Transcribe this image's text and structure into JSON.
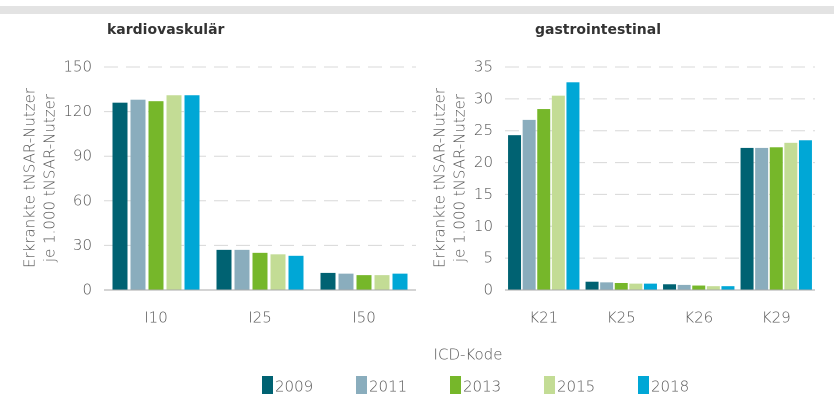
{
  "chart_data": [
    {
      "type": "bar",
      "title": "kardiovaskulär",
      "ylabel": [
        "Erkrankte tNSAR-Nutzer",
        "je 1.000 tNSAR-Nutzer"
      ],
      "xlabel": "ICD-Kode",
      "categories": [
        "I10",
        "I25",
        "I50"
      ],
      "series": [
        {
          "name": "2009",
          "color": "#006272",
          "values": [
            126,
            27,
            11.5
          ]
        },
        {
          "name": "2011",
          "color": "#8aadbd",
          "values": [
            128,
            27,
            11
          ]
        },
        {
          "name": "2013",
          "color": "#76b72a",
          "values": [
            127,
            25,
            10
          ]
        },
        {
          "name": "2015",
          "color": "#c3dc95",
          "values": [
            131,
            24,
            10
          ]
        },
        {
          "name": "2018",
          "color": "#00a7d6",
          "values": [
            131,
            23,
            11
          ]
        }
      ],
      "ylim": [
        0,
        150
      ],
      "yticks": [
        0,
        30,
        60,
        90,
        120,
        150
      ],
      "grid": true,
      "legend": "bottom"
    },
    {
      "type": "bar",
      "title": "gastrointestinal",
      "ylabel": [
        "Erkrankte tNSAR-Nutzer",
        "je 1.000 tNSAR-Nutzer"
      ],
      "categories": [
        "K21",
        "K25",
        "K26",
        "K29"
      ],
      "series": [
        {
          "name": "2009",
          "color": "#006272",
          "values": [
            24.3,
            1.3,
            0.9,
            22.3
          ]
        },
        {
          "name": "2011",
          "color": "#8aadbd",
          "values": [
            26.7,
            1.2,
            0.8,
            22.3
          ]
        },
        {
          "name": "2013",
          "color": "#76b72a",
          "values": [
            28.4,
            1.1,
            0.7,
            22.4
          ]
        },
        {
          "name": "2015",
          "color": "#c3dc95",
          "values": [
            30.5,
            1.0,
            0.6,
            23.1
          ]
        },
        {
          "name": "2018",
          "color": "#00a7d6",
          "values": [
            32.6,
            1.0,
            0.6,
            23.5
          ]
        }
      ],
      "ylim": [
        0,
        35
      ],
      "yticks": [
        0,
        5,
        10,
        15,
        20,
        25,
        30,
        35
      ],
      "grid": true
    }
  ]
}
